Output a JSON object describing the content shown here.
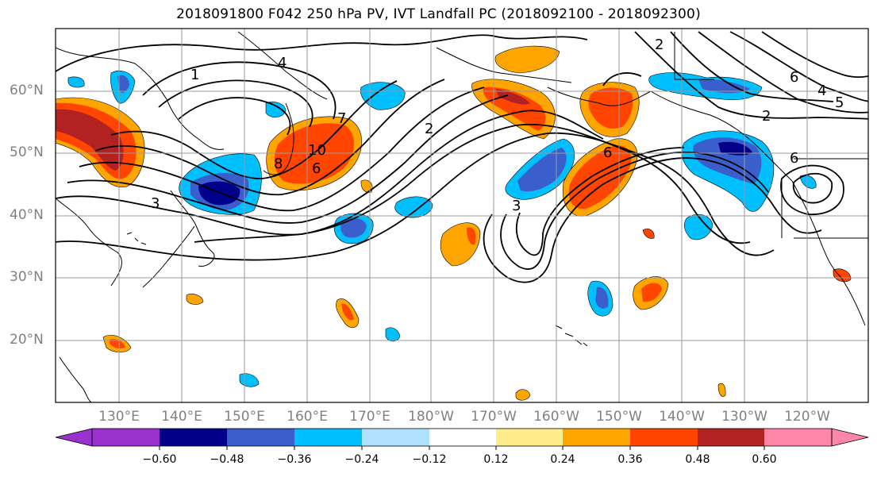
{
  "title": "2018091800 F042 250 hPa PV, IVT Landfall PC (2018092100 - 2018092300)",
  "latitude_labels": [
    "60°N",
    "50°N",
    "40°N",
    "30°N",
    "20°N"
  ],
  "longitude_labels": [
    "130°E",
    "140°E",
    "150°E",
    "160°E",
    "170°E",
    "180°W",
    "170°W",
    "160°W",
    "150°W",
    "140°W",
    "130°W",
    "120°W"
  ],
  "contour_labels": [
    "1",
    "4",
    "7",
    "2",
    "3",
    "8",
    "10",
    "6",
    "2",
    "3",
    "6",
    "2",
    "6",
    "5",
    "4",
    "6"
  ],
  "colorbar": {
    "ticks": [
      "−0.60",
      "−0.48",
      "−0.36",
      "−0.24",
      "−0.12",
      "0.12",
      "0.24",
      "0.36",
      "0.48",
      "0.60"
    ],
    "colors": {
      "under": "#9932CC",
      "levels": [
        "#00008B",
        "#3A5FCD",
        "#00BFFF",
        "#B0E2FF",
        "#FFFFFF",
        "#FFEC8B",
        "#FFA500",
        "#FF4500",
        "#B22222"
      ],
      "over": "#FF88AA"
    }
  },
  "colors": {
    "land_outline": "#000000",
    "gridline": "#9a9a9a",
    "axis_label": "#808080",
    "contour": "#000000"
  }
}
